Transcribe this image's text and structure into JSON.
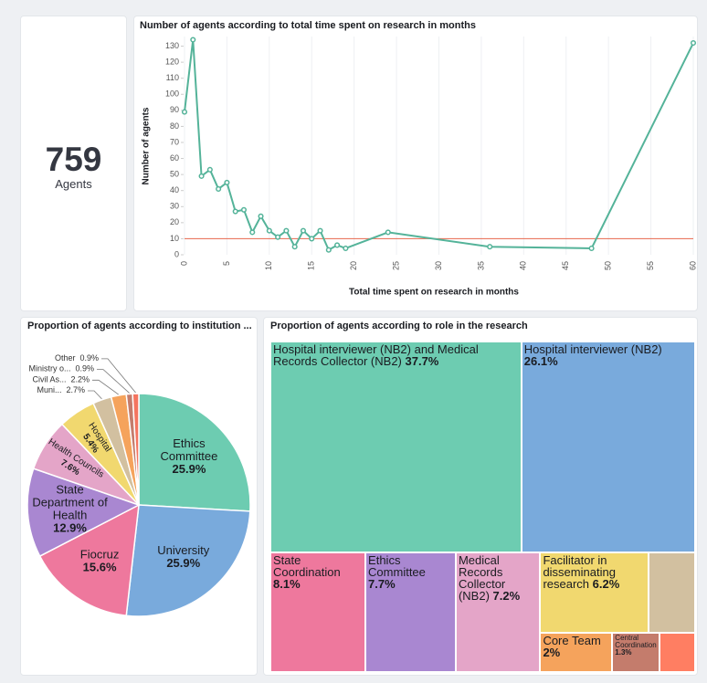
{
  "chart_data": [
    {
      "type": "metric",
      "value": 759,
      "label": "Agents"
    },
    {
      "type": "line",
      "title": "Number of agents according to total time spent on research in months",
      "x_label": "Total time spent on research in months",
      "y_label": "Number of agents",
      "x": [
        0,
        1,
        2,
        3,
        4,
        5,
        6,
        7,
        8,
        9,
        10,
        11,
        12,
        13,
        14,
        15,
        16,
        17,
        18,
        19,
        24,
        36,
        48,
        60
      ],
      "series": [
        {
          "name": "Number of agents",
          "color": "#54b399",
          "values": [
            89,
            134,
            49,
            53,
            41,
            45,
            27,
            28,
            14,
            24,
            15,
            11,
            15,
            5,
            15,
            10,
            15,
            3,
            6,
            4,
            14,
            5,
            4,
            132
          ]
        }
      ],
      "reference_line": {
        "value": 10,
        "color": "#e7664c"
      },
      "xlim": [
        0,
        60
      ],
      "xticks": [
        0,
        5,
        10,
        15,
        20,
        25,
        30,
        35,
        40,
        45,
        50,
        55,
        60
      ],
      "ylim": [
        0,
        136
      ],
      "yticks": [
        0,
        10,
        20,
        30,
        40,
        50,
        60,
        70,
        80,
        90,
        100,
        110,
        120,
        130
      ],
      "grid": "x"
    },
    {
      "type": "pie",
      "title": "Proportion of agents according to institution ...",
      "categories": [
        "Ethics Committee",
        "University",
        "Fiocruz",
        "State Department of Health",
        "Health Councils",
        "Hospital",
        "Muni...",
        "Civil As...",
        "Ministry o...",
        "Other"
      ],
      "values": [
        25.9,
        25.9,
        15.6,
        12.9,
        7.6,
        5.4,
        2.7,
        2.2,
        0.9,
        0.9
      ],
      "value_labels": [
        "25.9%",
        "25.9%",
        "15.6%",
        "12.9%",
        "7.6%",
        "5.4%",
        "2.7%",
        "2.2%",
        "0.9%",
        "0.9%"
      ],
      "colors": [
        "#6dccb1",
        "#79aadc",
        "#ee789d",
        "#a987d1",
        "#e4a5c8",
        "#f1d86f",
        "#d2c0a0",
        "#f5a35c",
        "#c47c6c",
        "#f47560"
      ]
    },
    {
      "type": "treemap",
      "title": "Proportion of agents according to role in the research",
      "categories": [
        "Hospital interviewer (NB2) and Medical Records Collector (NB2)",
        "Hospital interviewer (NB2)",
        "State Coordination",
        "Ethics Committee",
        "Medical Records Collector (NB2)",
        "Facilitator in disseminating research",
        null,
        "Core Team",
        "Central Coordination",
        null
      ],
      "values": [
        37.7,
        26.1,
        8.1,
        7.7,
        7.2,
        6.2,
        2.7,
        2,
        1.3,
        1.0
      ],
      "value_labels": [
        "37.7%",
        "26.1%",
        "8.1%",
        "7.7%",
        "7.2%",
        "6.2%",
        null,
        "2%",
        "1.3%",
        null
      ],
      "colors": [
        "#6dccb1",
        "#79aadc",
        "#ee789d",
        "#a987d1",
        "#e4a5c8",
        "#f1d86f",
        "#d2c0a0",
        "#f5a35c",
        "#c47c6c",
        "#ff7e62"
      ]
    }
  ]
}
